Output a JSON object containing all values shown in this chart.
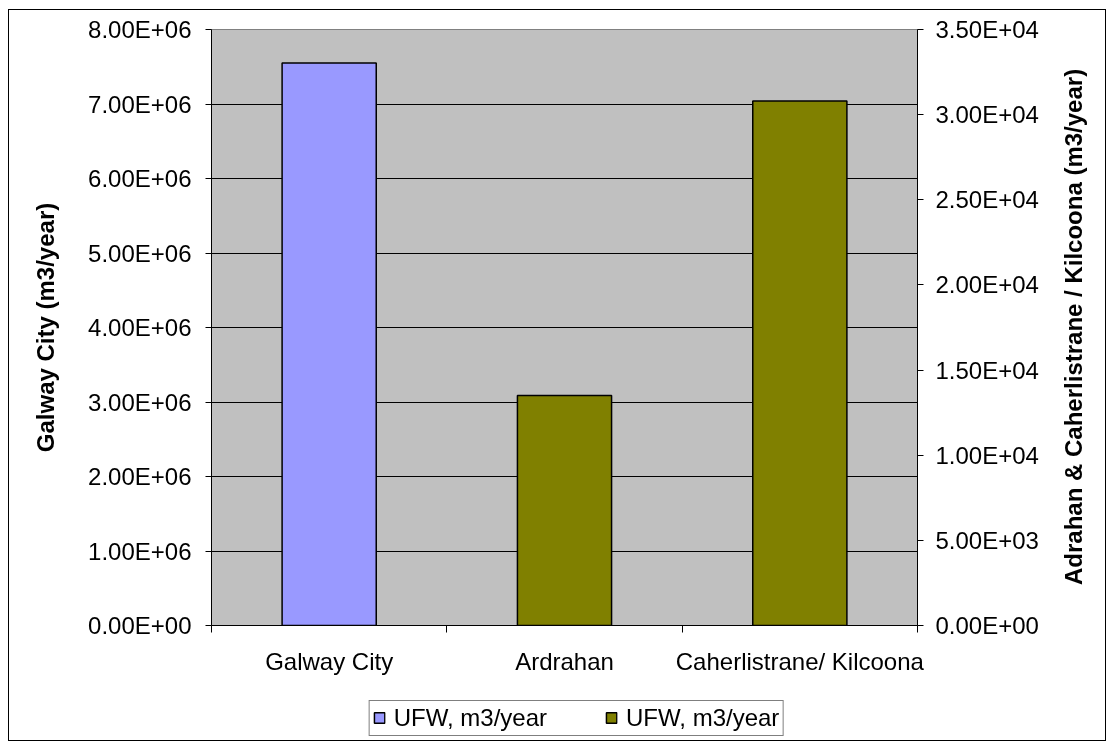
{
  "chart_data": {
    "type": "bar",
    "categories": [
      "Galway City",
      "Ardrahan",
      "Caherlistrane/ Kilcoona"
    ],
    "series": [
      {
        "name": "UFW, m3/year",
        "color": "#9999ff",
        "values": [
          7550000,
          null,
          null
        ]
      },
      {
        "name": "UFW, m3/year",
        "color": "#808000",
        "axis": "y2",
        "values": [
          null,
          13500,
          30800
        ]
      }
    ],
    "ylabel": "Galway City (m3/year)",
    "y2label": "Adrahan & Caherlistrane / Kilcoona (m3/year)",
    "ylim": [
      0,
      8000000
    ],
    "yticks": [
      {
        "value": 0,
        "label": "0.00E+00"
      },
      {
        "value": 1000000,
        "label": "1.00E+06"
      },
      {
        "value": 2000000,
        "label": "2.00E+06"
      },
      {
        "value": 3000000,
        "label": "3.00E+06"
      },
      {
        "value": 4000000,
        "label": "4.00E+06"
      },
      {
        "value": 5000000,
        "label": "5.00E+06"
      },
      {
        "value": 6000000,
        "label": "6.00E+06"
      },
      {
        "value": 7000000,
        "label": "7.00E+06"
      },
      {
        "value": 8000000,
        "label": "8.00E+06"
      }
    ],
    "y2lim": [
      0,
      35000
    ],
    "y2ticks": [
      {
        "value": 0,
        "label": "0.00E+00"
      },
      {
        "value": 5000,
        "label": "5.00E+03"
      },
      {
        "value": 10000,
        "label": "1.00E+04"
      },
      {
        "value": 15000,
        "label": "1.50E+04"
      },
      {
        "value": 20000,
        "label": "2.00E+04"
      },
      {
        "value": 25000,
        "label": "2.50E+04"
      },
      {
        "value": 30000,
        "label": "3.00E+04"
      },
      {
        "value": 35000,
        "label": "3.50E+04"
      }
    ],
    "grid": "y",
    "legend": "bottom"
  }
}
